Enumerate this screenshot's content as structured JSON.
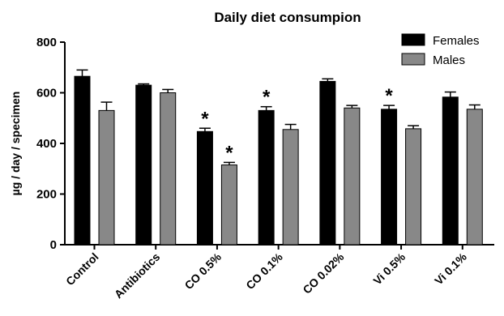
{
  "chart_data": {
    "type": "bar",
    "title": "Daily diet consumpion",
    "xlabel": "",
    "ylabel": "µg / day / specimen",
    "ylim": [
      0,
      800
    ],
    "yticks": [
      0,
      200,
      400,
      600,
      800
    ],
    "categories": [
      "Control",
      "Antibiotics",
      "CO 0.5%",
      "CO 0.1%",
      "CO 0.02%",
      "Vi 0.5%",
      "Vi 0.1%"
    ],
    "series": [
      {
        "name": "Females",
        "color": "#000000",
        "values": [
          665,
          630,
          447,
          530,
          645,
          535,
          583
        ],
        "errors": [
          25,
          5,
          13,
          15,
          10,
          15,
          20
        ]
      },
      {
        "name": "Males",
        "color": "#888888",
        "values": [
          530,
          600,
          315,
          455,
          540,
          458,
          535
        ],
        "errors": [
          33,
          13,
          10,
          20,
          10,
          12,
          17
        ]
      }
    ],
    "annotations": [
      {
        "category": 2,
        "series": 0,
        "text": "*"
      },
      {
        "category": 2,
        "series": 1,
        "text": "*"
      },
      {
        "category": 3,
        "series": 0,
        "text": "*"
      },
      {
        "category": 5,
        "series": 0,
        "text": "*"
      }
    ],
    "legend_position": "top-right",
    "grid": false
  }
}
